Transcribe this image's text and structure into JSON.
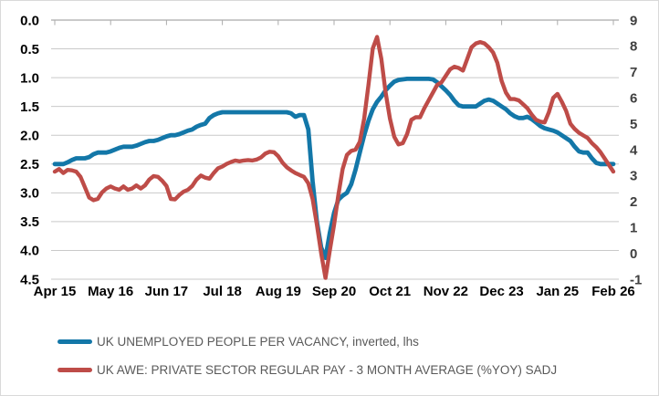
{
  "chart_data": {
    "type": "line",
    "title": "",
    "x_axis": {
      "tick_labels": [
        "Apr 15",
        "May 16",
        "Jun 17",
        "Jul 18",
        "Aug 19",
        "Sep 20",
        "Oct 21",
        "Nov 22",
        "Dec 23",
        "Jan 25",
        "Feb 26"
      ],
      "months_per_tick": 13,
      "start": "Apr 2015",
      "end": "Feb 2026"
    },
    "left_axis": {
      "tick_labels": [
        "0.0",
        "0.5",
        "1.0",
        "1.5",
        "2.0",
        "2.5",
        "3.0",
        "3.5",
        "4.0",
        "4.5"
      ],
      "min": 0.0,
      "max": 4.5,
      "inverted": true
    },
    "right_axis": {
      "tick_labels": [
        "9",
        "8",
        "7",
        "6",
        "5",
        "4",
        "3",
        "2",
        "1",
        "0",
        "-1"
      ],
      "min": -1,
      "max": 9
    },
    "grid": true,
    "legend_position": "bottom-left",
    "series": [
      {
        "name": "UK UNEMPLOYED PEOPLE PER VACANCY, inverted, lhs",
        "axis": "left",
        "color": "#1377A8",
        "values": [
          2.5,
          2.5,
          2.5,
          2.47,
          2.43,
          2.4,
          2.4,
          2.4,
          2.38,
          2.33,
          2.3,
          2.3,
          2.3,
          2.28,
          2.25,
          2.22,
          2.2,
          2.2,
          2.2,
          2.18,
          2.15,
          2.12,
          2.1,
          2.1,
          2.08,
          2.05,
          2.02,
          2.0,
          2.0,
          1.98,
          1.95,
          1.92,
          1.9,
          1.85,
          1.82,
          1.8,
          1.7,
          1.65,
          1.62,
          1.6,
          1.6,
          1.6,
          1.6,
          1.6,
          1.6,
          1.6,
          1.6,
          1.6,
          1.6,
          1.6,
          1.6,
          1.6,
          1.6,
          1.6,
          1.6,
          1.62,
          1.68,
          1.65,
          1.65,
          1.9,
          2.8,
          3.5,
          3.95,
          4.13,
          3.7,
          3.35,
          3.12,
          3.05,
          3.0,
          2.85,
          2.6,
          2.3,
          2.0,
          1.75,
          1.55,
          1.42,
          1.33,
          1.22,
          1.14,
          1.07,
          1.04,
          1.03,
          1.02,
          1.02,
          1.02,
          1.02,
          1.02,
          1.02,
          1.03,
          1.08,
          1.15,
          1.22,
          1.3,
          1.4,
          1.48,
          1.5,
          1.5,
          1.5,
          1.5,
          1.45,
          1.4,
          1.38,
          1.4,
          1.45,
          1.5,
          1.55,
          1.62,
          1.67,
          1.7,
          1.7,
          1.68,
          1.72,
          1.78,
          1.84,
          1.88,
          1.9,
          1.92,
          1.95,
          2.0,
          2.05,
          2.1,
          2.2,
          2.28,
          2.3,
          2.3,
          2.4,
          2.48,
          2.5,
          2.5,
          2.5,
          2.5
        ]
      },
      {
        "name": "UK AWE: PRIVATE SECTOR REGULAR PAY - 3 MONTH AVERAGE (%YOY) SADJ",
        "axis": "right",
        "color": "#BE4C48",
        "values": [
          3.15,
          3.25,
          3.1,
          3.22,
          3.2,
          3.15,
          2.95,
          2.55,
          2.15,
          2.05,
          2.1,
          2.35,
          2.5,
          2.58,
          2.5,
          2.45,
          2.58,
          2.45,
          2.5,
          2.62,
          2.5,
          2.62,
          2.85,
          2.98,
          2.95,
          2.8,
          2.6,
          2.1,
          2.08,
          2.25,
          2.38,
          2.45,
          2.6,
          2.85,
          3.0,
          2.92,
          2.88,
          3.1,
          3.28,
          3.35,
          3.45,
          3.52,
          3.58,
          3.55,
          3.58,
          3.6,
          3.58,
          3.62,
          3.7,
          3.85,
          3.92,
          3.9,
          3.75,
          3.5,
          3.32,
          3.2,
          3.1,
          3.02,
          2.95,
          2.7,
          2.1,
          1.1,
          0.0,
          -0.95,
          0.1,
          1.1,
          2.25,
          3.25,
          3.8,
          3.95,
          4.0,
          4.3,
          5.2,
          6.5,
          7.9,
          8.35,
          7.5,
          6.2,
          5.2,
          4.5,
          4.2,
          4.25,
          4.6,
          5.15,
          5.25,
          5.25,
          5.6,
          5.9,
          6.2,
          6.5,
          6.6,
          6.85,
          7.1,
          7.2,
          7.15,
          7.05,
          7.5,
          7.95,
          8.1,
          8.15,
          8.1,
          7.95,
          7.75,
          7.35,
          6.65,
          6.2,
          5.95,
          5.95,
          5.9,
          5.75,
          5.6,
          5.35,
          5.15,
          5.08,
          5.05,
          5.45,
          6.0,
          6.15,
          5.85,
          5.5,
          5.0,
          4.8,
          4.65,
          4.55,
          4.45,
          4.25,
          4.1,
          3.9,
          3.65,
          3.4,
          3.15
        ]
      }
    ]
  },
  "colors": {
    "background": "#FFFFFF",
    "border": "#D9D9D9",
    "grid": "#C9C9C9",
    "axis_line": "#ABABAB",
    "left_label": "#000000",
    "right_label": "#404040",
    "x_label": "#000000",
    "legend_text": "#595959",
    "series_blue": "#1377A8",
    "series_red": "#BE4C48"
  }
}
